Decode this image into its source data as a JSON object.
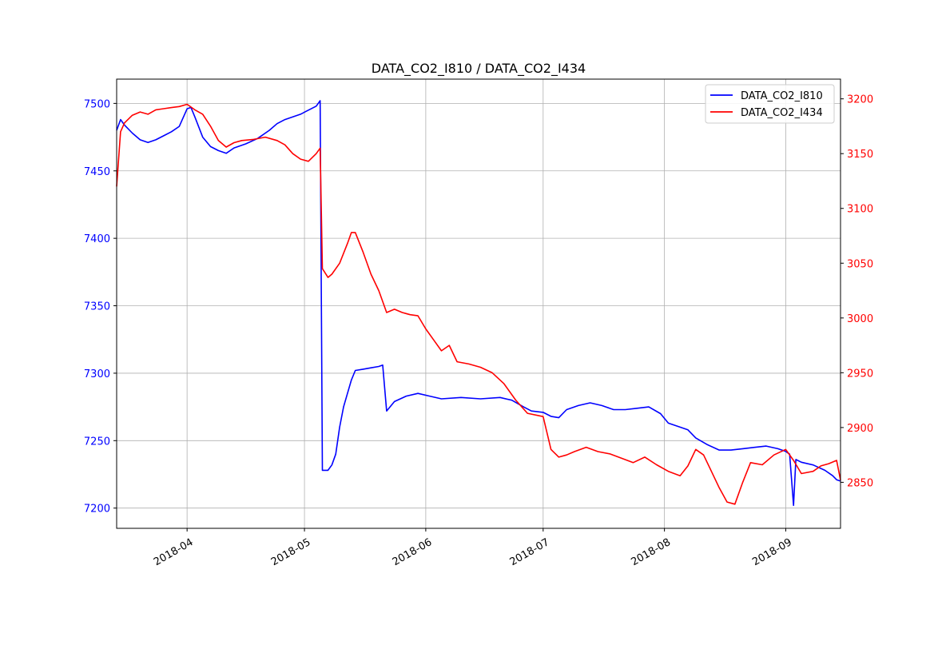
{
  "chart_data": {
    "type": "line",
    "title": "DATA_CO2_I810 / DATA_CO2_I434",
    "xlabel": "",
    "ylabel_left": "",
    "ylabel_right": "",
    "x_range": [
      "2018-03-14",
      "2018-09-15"
    ],
    "y_left_range": [
      7185,
      7518
    ],
    "y_right_range": [
      2808,
      3218
    ],
    "x_ticks": [
      "2018-04",
      "2018-05",
      "2018-06",
      "2018-07",
      "2018-08",
      "2018-09"
    ],
    "x_tick_dates": [
      "2018-04-01",
      "2018-05-01",
      "2018-06-01",
      "2018-07-01",
      "2018-08-01",
      "2018-09-01"
    ],
    "y_left_ticks": [
      7200,
      7250,
      7300,
      7350,
      7400,
      7450,
      7500
    ],
    "y_right_ticks": [
      2850,
      2900,
      2950,
      3000,
      3050,
      3100,
      3150,
      3200
    ],
    "grid": true,
    "legend_position": "top-right",
    "series": [
      {
        "name": "DATA_CO2_I810",
        "axis": "left",
        "color": "#0000ff",
        "points": [
          [
            "2018-03-14",
            7480
          ],
          [
            "2018-03-15",
            7488
          ],
          [
            "2018-03-16",
            7484
          ],
          [
            "2018-03-18",
            7478
          ],
          [
            "2018-03-20",
            7473
          ],
          [
            "2018-03-22",
            7471
          ],
          [
            "2018-03-24",
            7473
          ],
          [
            "2018-03-26",
            7476
          ],
          [
            "2018-03-28",
            7479
          ],
          [
            "2018-03-30",
            7483
          ],
          [
            "2018-04-01",
            7496
          ],
          [
            "2018-04-02",
            7497
          ],
          [
            "2018-04-03",
            7490
          ],
          [
            "2018-04-05",
            7475
          ],
          [
            "2018-04-07",
            7468
          ],
          [
            "2018-04-09",
            7465
          ],
          [
            "2018-04-11",
            7463
          ],
          [
            "2018-04-13",
            7467
          ],
          [
            "2018-04-16",
            7470
          ],
          [
            "2018-04-19",
            7474
          ],
          [
            "2018-04-22",
            7480
          ],
          [
            "2018-04-24",
            7485
          ],
          [
            "2018-04-26",
            7488
          ],
          [
            "2018-04-28",
            7490
          ],
          [
            "2018-04-30",
            7492
          ],
          [
            "2018-05-02",
            7495
          ],
          [
            "2018-05-04",
            7498
          ],
          [
            "2018-05-05",
            7502
          ],
          [
            "2018-05-05T14:00",
            7228
          ],
          [
            "2018-05-07",
            7228
          ],
          [
            "2018-05-08",
            7232
          ],
          [
            "2018-05-09",
            7240
          ],
          [
            "2018-05-10",
            7260
          ],
          [
            "2018-05-11",
            7275
          ],
          [
            "2018-05-12",
            7285
          ],
          [
            "2018-05-13",
            7295
          ],
          [
            "2018-05-14",
            7302
          ],
          [
            "2018-05-16",
            7303
          ],
          [
            "2018-05-18",
            7304
          ],
          [
            "2018-05-20",
            7305
          ],
          [
            "2018-05-21",
            7306
          ],
          [
            "2018-05-22",
            7272
          ],
          [
            "2018-05-24",
            7279
          ],
          [
            "2018-05-27",
            7283
          ],
          [
            "2018-05-30",
            7285
          ],
          [
            "2018-06-02",
            7283
          ],
          [
            "2018-06-05",
            7281
          ],
          [
            "2018-06-10",
            7282
          ],
          [
            "2018-06-15",
            7281
          ],
          [
            "2018-06-20",
            7282
          ],
          [
            "2018-06-23",
            7280
          ],
          [
            "2018-06-26",
            7275
          ],
          [
            "2018-06-28",
            7272
          ],
          [
            "2018-07-01",
            7271
          ],
          [
            "2018-07-03",
            7268
          ],
          [
            "2018-07-05",
            7267
          ],
          [
            "2018-07-07",
            7273
          ],
          [
            "2018-07-10",
            7276
          ],
          [
            "2018-07-13",
            7278
          ],
          [
            "2018-07-16",
            7276
          ],
          [
            "2018-07-19",
            7273
          ],
          [
            "2018-07-22",
            7273
          ],
          [
            "2018-07-25",
            7274
          ],
          [
            "2018-07-28",
            7275
          ],
          [
            "2018-07-31",
            7270
          ],
          [
            "2018-08-02",
            7263
          ],
          [
            "2018-08-05",
            7260
          ],
          [
            "2018-08-07",
            7258
          ],
          [
            "2018-08-09",
            7252
          ],
          [
            "2018-08-12",
            7247
          ],
          [
            "2018-08-15",
            7243
          ],
          [
            "2018-08-18",
            7243
          ],
          [
            "2018-08-21",
            7244
          ],
          [
            "2018-08-24",
            7245
          ],
          [
            "2018-08-27",
            7246
          ],
          [
            "2018-08-30",
            7244
          ],
          [
            "2018-09-01",
            7242
          ],
          [
            "2018-09-02",
            7240
          ],
          [
            "2018-09-03",
            7202
          ],
          [
            "2018-09-03T14:00",
            7236
          ],
          [
            "2018-09-05",
            7234
          ],
          [
            "2018-09-08",
            7232
          ],
          [
            "2018-09-11",
            7228
          ],
          [
            "2018-09-13",
            7224
          ],
          [
            "2018-09-14",
            7221
          ],
          [
            "2018-09-15",
            7220
          ]
        ]
      },
      {
        "name": "DATA_CO2_I434",
        "axis": "right",
        "color": "#ff0000",
        "points": [
          [
            "2018-03-14",
            3120
          ],
          [
            "2018-03-15",
            3170
          ],
          [
            "2018-03-16",
            3178
          ],
          [
            "2018-03-18",
            3185
          ],
          [
            "2018-03-20",
            3188
          ],
          [
            "2018-03-22",
            3186
          ],
          [
            "2018-03-24",
            3190
          ],
          [
            "2018-03-26",
            3191
          ],
          [
            "2018-03-28",
            3192
          ],
          [
            "2018-03-30",
            3193
          ],
          [
            "2018-04-01",
            3195
          ],
          [
            "2018-04-03",
            3190
          ],
          [
            "2018-04-05",
            3186
          ],
          [
            "2018-04-07",
            3175
          ],
          [
            "2018-04-09",
            3162
          ],
          [
            "2018-04-11",
            3156
          ],
          [
            "2018-04-13",
            3160
          ],
          [
            "2018-04-15",
            3162
          ],
          [
            "2018-04-18",
            3163
          ],
          [
            "2018-04-21",
            3165
          ],
          [
            "2018-04-24",
            3162
          ],
          [
            "2018-04-26",
            3158
          ],
          [
            "2018-04-28",
            3150
          ],
          [
            "2018-04-30",
            3145
          ],
          [
            "2018-05-02",
            3143
          ],
          [
            "2018-05-04",
            3150
          ],
          [
            "2018-05-05",
            3155
          ],
          [
            "2018-05-05T14:00",
            3045
          ],
          [
            "2018-05-07",
            3037
          ],
          [
            "2018-05-08",
            3040
          ],
          [
            "2018-05-10",
            3050
          ],
          [
            "2018-05-12",
            3068
          ],
          [
            "2018-05-13",
            3078
          ],
          [
            "2018-05-14",
            3078
          ],
          [
            "2018-05-16",
            3060
          ],
          [
            "2018-05-18",
            3040
          ],
          [
            "2018-05-20",
            3025
          ],
          [
            "2018-05-22",
            3005
          ],
          [
            "2018-05-24",
            3008
          ],
          [
            "2018-05-26",
            3005
          ],
          [
            "2018-05-28",
            3003
          ],
          [
            "2018-05-30",
            3002
          ],
          [
            "2018-06-01",
            2990
          ],
          [
            "2018-06-03",
            2980
          ],
          [
            "2018-06-05",
            2970
          ],
          [
            "2018-06-07",
            2975
          ],
          [
            "2018-06-09",
            2960
          ],
          [
            "2018-06-12",
            2958
          ],
          [
            "2018-06-15",
            2955
          ],
          [
            "2018-06-18",
            2950
          ],
          [
            "2018-06-21",
            2940
          ],
          [
            "2018-06-24",
            2925
          ],
          [
            "2018-06-27",
            2913
          ],
          [
            "2018-07-01",
            2910
          ],
          [
            "2018-07-03",
            2880
          ],
          [
            "2018-07-05",
            2873
          ],
          [
            "2018-07-07",
            2875
          ],
          [
            "2018-07-09",
            2878
          ],
          [
            "2018-07-12",
            2882
          ],
          [
            "2018-07-15",
            2878
          ],
          [
            "2018-07-18",
            2876
          ],
          [
            "2018-07-21",
            2872
          ],
          [
            "2018-07-24",
            2868
          ],
          [
            "2018-07-27",
            2873
          ],
          [
            "2018-07-30",
            2866
          ],
          [
            "2018-08-02",
            2860
          ],
          [
            "2018-08-05",
            2856
          ],
          [
            "2018-08-07",
            2865
          ],
          [
            "2018-08-09",
            2880
          ],
          [
            "2018-08-11",
            2875
          ],
          [
            "2018-08-13",
            2860
          ],
          [
            "2018-08-15",
            2845
          ],
          [
            "2018-08-17",
            2832
          ],
          [
            "2018-08-19",
            2830
          ],
          [
            "2018-08-21",
            2850
          ],
          [
            "2018-08-23",
            2868
          ],
          [
            "2018-08-26",
            2866
          ],
          [
            "2018-08-29",
            2875
          ],
          [
            "2018-09-01",
            2880
          ],
          [
            "2018-09-03",
            2870
          ],
          [
            "2018-09-05",
            2858
          ],
          [
            "2018-09-08",
            2860
          ],
          [
            "2018-09-10",
            2865
          ],
          [
            "2018-09-12",
            2867
          ],
          [
            "2018-09-14",
            2870
          ],
          [
            "2018-09-15",
            2852
          ]
        ]
      }
    ]
  }
}
